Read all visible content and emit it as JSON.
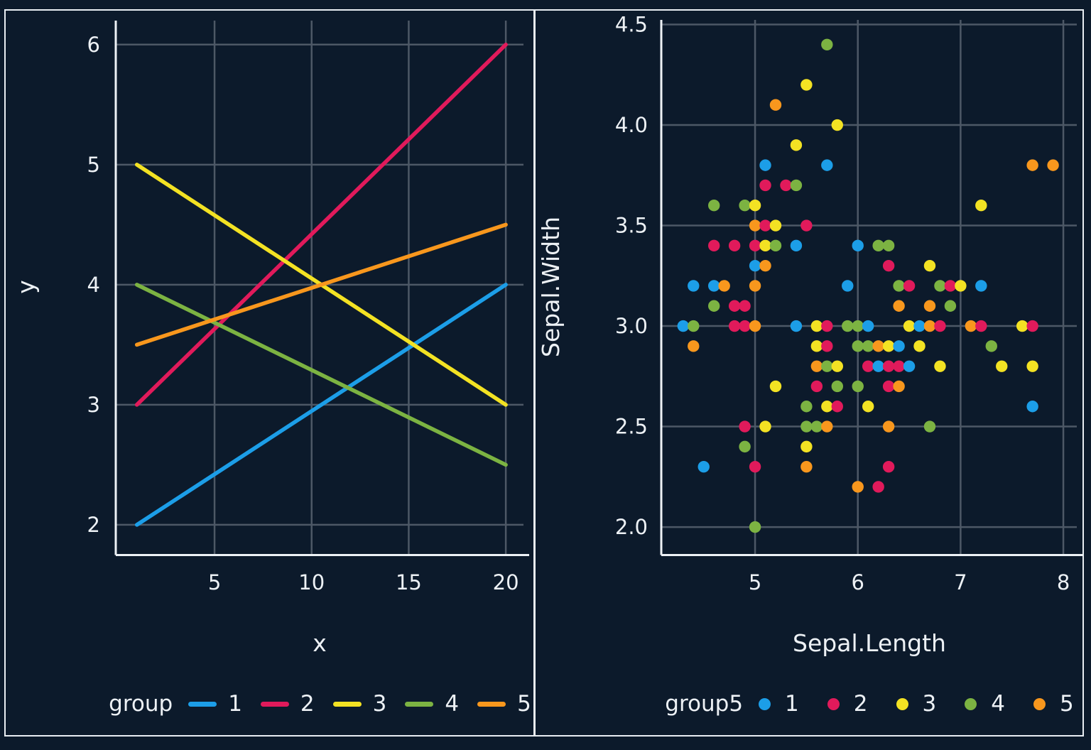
{
  "colors": {
    "background": "#0c1a2b",
    "panel_border": "#e9eef3",
    "gridline": "#4d5866",
    "axis_line": "#eef2f6",
    "text": "#edf1f5",
    "group1_blue": "#1c9ee8",
    "group2_pink": "#e11a5b",
    "group3_yellow": "#f3e223",
    "group4_green": "#7cb342",
    "group5_orange": "#f8971d"
  },
  "chart_data": [
    {
      "type": "line",
      "title": "",
      "xlabel": "x",
      "ylabel": "y",
      "legend_title": "group",
      "legend_position": "bottom",
      "grid": true,
      "xlim": [
        -0.05,
        20.91
      ],
      "ylim": [
        1.757,
        6.2
      ],
      "x_ticks": [
        {
          "v": 5,
          "label": "5"
        },
        {
          "v": 10,
          "label": "10"
        },
        {
          "v": 15,
          "label": "15"
        },
        {
          "v": 20,
          "label": "20"
        }
      ],
      "y_ticks": [
        {
          "v": 2,
          "label": "2"
        },
        {
          "v": 3,
          "label": "3"
        },
        {
          "v": 4,
          "label": "4"
        },
        {
          "v": 5,
          "label": "5"
        },
        {
          "v": 6,
          "label": "6"
        }
      ],
      "series": [
        {
          "name": "1",
          "color": "#1c9ee8",
          "x": [
            1,
            20
          ],
          "y": [
            2,
            4
          ]
        },
        {
          "name": "2",
          "color": "#e11a5b",
          "x": [
            1,
            20
          ],
          "y": [
            3,
            6
          ]
        },
        {
          "name": "3",
          "color": "#f3e223",
          "x": [
            1,
            20
          ],
          "y": [
            5,
            3
          ]
        },
        {
          "name": "4",
          "color": "#7cb342",
          "x": [
            1,
            20
          ],
          "y": [
            4,
            2.5
          ]
        },
        {
          "name": "5",
          "color": "#f8971d",
          "x": [
            1,
            20
          ],
          "y": [
            3.5,
            4.5
          ]
        }
      ]
    },
    {
      "type": "scatter",
      "title": "",
      "xlabel": "Sepal.Length",
      "ylabel": "Sepal.Width",
      "legend_title": "group5",
      "legend_position": "bottom",
      "grid": true,
      "xlim": [
        4.094,
        8.131
      ],
      "ylim": [
        1.866,
        4.523
      ],
      "x_ticks": [
        {
          "v": 5,
          "label": "5"
        },
        {
          "v": 6,
          "label": "6"
        },
        {
          "v": 7,
          "label": "7"
        },
        {
          "v": 8,
          "label": "8"
        }
      ],
      "y_ticks": [
        {
          "v": 2.0,
          "label": "2.0"
        },
        {
          "v": 2.5,
          "label": "2.5"
        },
        {
          "v": 3.0,
          "label": "3.0"
        },
        {
          "v": 3.5,
          "label": "3.5"
        },
        {
          "v": 4.0,
          "label": "4.0"
        },
        {
          "v": 4.5,
          "label": "4.5"
        }
      ],
      "groups": [
        {
          "name": "1",
          "color": "#1c9ee8"
        },
        {
          "name": "2",
          "color": "#e11a5b"
        },
        {
          "name": "3",
          "color": "#f3e223"
        },
        {
          "name": "4",
          "color": "#7cb342"
        },
        {
          "name": "5",
          "color": "#f8971d"
        }
      ],
      "points": [
        [
          5.7,
          4.4,
          4
        ],
        [
          5.5,
          4.2,
          3
        ],
        [
          5.2,
          4.1,
          5
        ],
        [
          5.8,
          4.0,
          3
        ],
        [
          5.4,
          3.9,
          3
        ],
        [
          5.1,
          3.8,
          1
        ],
        [
          5.7,
          3.8,
          1
        ],
        [
          7.7,
          3.8,
          5
        ],
        [
          7.9,
          3.8,
          5
        ],
        [
          5.1,
          3.7,
          2
        ],
        [
          5.3,
          3.7,
          2
        ],
        [
          5.4,
          3.7,
          4
        ],
        [
          4.6,
          3.6,
          4
        ],
        [
          4.9,
          3.6,
          4
        ],
        [
          5.0,
          3.6,
          3
        ],
        [
          7.2,
          3.6,
          3
        ],
        [
          5.0,
          3.5,
          5
        ],
        [
          5.1,
          3.5,
          2
        ],
        [
          5.2,
          3.5,
          3
        ],
        [
          5.5,
          3.5,
          2
        ],
        [
          4.6,
          3.4,
          2
        ],
        [
          4.8,
          3.4,
          2
        ],
        [
          5.0,
          3.4,
          2
        ],
        [
          5.1,
          3.4,
          3
        ],
        [
          5.2,
          3.4,
          4
        ],
        [
          5.4,
          3.4,
          1
        ],
        [
          6.0,
          3.4,
          1
        ],
        [
          6.2,
          3.4,
          4
        ],
        [
          6.3,
          3.4,
          4
        ],
        [
          5.0,
          3.3,
          1
        ],
        [
          5.1,
          3.3,
          5
        ],
        [
          6.3,
          3.3,
          2
        ],
        [
          6.7,
          3.3,
          3
        ],
        [
          4.4,
          3.2,
          1
        ],
        [
          4.6,
          3.2,
          1
        ],
        [
          4.7,
          3.2,
          5
        ],
        [
          5.0,
          3.2,
          5
        ],
        [
          5.9,
          3.2,
          1
        ],
        [
          6.4,
          3.2,
          4
        ],
        [
          6.5,
          3.2,
          2
        ],
        [
          6.8,
          3.2,
          4
        ],
        [
          6.9,
          3.2,
          2
        ],
        [
          7.0,
          3.2,
          3
        ],
        [
          7.2,
          3.2,
          1
        ],
        [
          4.6,
          3.1,
          4
        ],
        [
          4.8,
          3.1,
          2
        ],
        [
          4.9,
          3.1,
          2
        ],
        [
          6.4,
          3.1,
          5
        ],
        [
          6.7,
          3.1,
          5
        ],
        [
          6.9,
          3.1,
          4
        ],
        [
          4.3,
          3.0,
          1
        ],
        [
          4.4,
          3.0,
          4
        ],
        [
          4.8,
          3.0,
          2
        ],
        [
          4.9,
          3.0,
          2
        ],
        [
          5.0,
          3.0,
          5
        ],
        [
          5.4,
          3.0,
          1
        ],
        [
          5.6,
          3.0,
          3
        ],
        [
          5.7,
          3.0,
          2
        ],
        [
          5.9,
          3.0,
          4
        ],
        [
          6.0,
          3.0,
          4
        ],
        [
          6.1,
          3.0,
          1
        ],
        [
          6.5,
          3.0,
          3
        ],
        [
          6.6,
          3.0,
          1
        ],
        [
          6.7,
          3.0,
          5
        ],
        [
          6.8,
          3.0,
          2
        ],
        [
          7.1,
          3.0,
          5
        ],
        [
          7.2,
          3.0,
          2
        ],
        [
          7.6,
          3.0,
          3
        ],
        [
          7.7,
          3.0,
          2
        ],
        [
          4.4,
          2.9,
          5
        ],
        [
          5.6,
          2.9,
          3
        ],
        [
          5.7,
          2.9,
          2
        ],
        [
          6.0,
          2.9,
          4
        ],
        [
          6.1,
          2.9,
          4
        ],
        [
          6.2,
          2.9,
          5
        ],
        [
          6.3,
          2.9,
          3
        ],
        [
          6.4,
          2.9,
          1
        ],
        [
          6.6,
          2.9,
          3
        ],
        [
          7.3,
          2.9,
          4
        ],
        [
          5.6,
          2.8,
          5
        ],
        [
          5.7,
          2.8,
          4
        ],
        [
          5.8,
          2.8,
          3
        ],
        [
          6.1,
          2.8,
          2
        ],
        [
          6.2,
          2.8,
          1
        ],
        [
          6.3,
          2.8,
          2
        ],
        [
          6.4,
          2.8,
          2
        ],
        [
          6.5,
          2.8,
          1
        ],
        [
          6.8,
          2.8,
          3
        ],
        [
          7.4,
          2.8,
          3
        ],
        [
          7.7,
          2.8,
          3
        ],
        [
          5.2,
          2.7,
          3
        ],
        [
          5.6,
          2.7,
          2
        ],
        [
          5.8,
          2.7,
          4
        ],
        [
          6.0,
          2.7,
          4
        ],
        [
          6.3,
          2.7,
          2
        ],
        [
          6.4,
          2.7,
          5
        ],
        [
          5.5,
          2.6,
          4
        ],
        [
          5.7,
          2.6,
          3
        ],
        [
          5.8,
          2.6,
          2
        ],
        [
          6.1,
          2.6,
          3
        ],
        [
          7.7,
          2.6,
          1
        ],
        [
          4.9,
          2.5,
          2
        ],
        [
          5.1,
          2.5,
          3
        ],
        [
          5.5,
          2.5,
          4
        ],
        [
          5.6,
          2.5,
          4
        ],
        [
          5.7,
          2.5,
          5
        ],
        [
          6.3,
          2.5,
          5
        ],
        [
          6.7,
          2.5,
          4
        ],
        [
          4.9,
          2.4,
          4
        ],
        [
          5.5,
          2.4,
          3
        ],
        [
          4.5,
          2.3,
          1
        ],
        [
          5.0,
          2.3,
          2
        ],
        [
          5.5,
          2.3,
          5
        ],
        [
          6.3,
          2.3,
          2
        ],
        [
          6.0,
          2.2,
          5
        ],
        [
          6.2,
          2.2,
          2
        ],
        [
          5.0,
          2.0,
          4
        ]
      ]
    }
  ]
}
